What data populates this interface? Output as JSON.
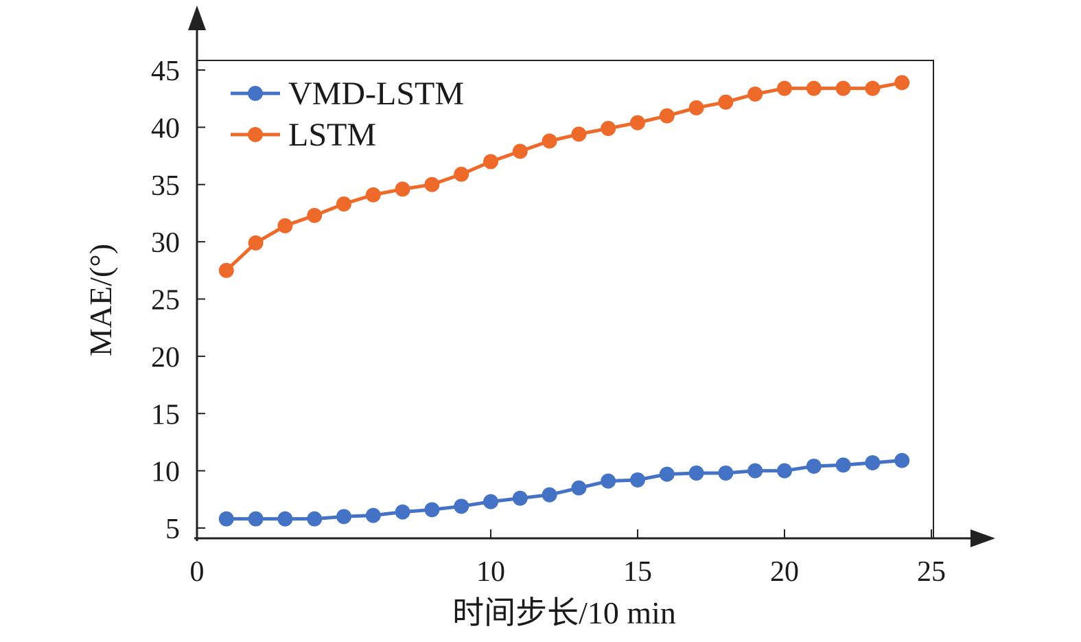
{
  "chart_data": {
    "type": "line",
    "xlabel": "时间步长/10 min",
    "ylabel": "MAE/(°)",
    "xlim": [
      0,
      25
    ],
    "ylim": [
      5,
      45
    ],
    "xticks": [
      0,
      10,
      15,
      20,
      25
    ],
    "yticks": [
      5,
      10,
      15,
      20,
      25,
      30,
      35,
      40,
      45
    ],
    "grid": false,
    "legend_position": "top-left",
    "x": [
      1,
      2,
      3,
      4,
      5,
      6,
      7,
      8,
      9,
      10,
      11,
      12,
      13,
      14,
      15,
      16,
      17,
      18,
      19,
      20,
      21,
      22,
      23,
      24
    ],
    "series": [
      {
        "name": "VMD-LSTM",
        "color": "#4472c4",
        "values": [
          5.8,
          5.8,
          5.8,
          5.8,
          6.0,
          6.1,
          6.4,
          6.6,
          6.9,
          7.3,
          7.6,
          7.9,
          8.5,
          9.1,
          9.2,
          9.7,
          9.8,
          9.8,
          10.0,
          10.0,
          10.4,
          10.5,
          10.7,
          10.9
        ]
      },
      {
        "name": "LSTM",
        "color": "#ed6a2a",
        "values": [
          27.5,
          29.9,
          31.4,
          32.3,
          33.3,
          34.1,
          34.6,
          35.0,
          35.9,
          37.0,
          37.9,
          38.8,
          39.4,
          39.9,
          40.4,
          41.0,
          41.7,
          42.2,
          42.9,
          43.4,
          43.4,
          43.4,
          43.4,
          43.9
        ]
      }
    ]
  },
  "icons": {
    "x_axis_arrow": "arrow-right-icon",
    "y_axis_arrow": "arrow-up-icon"
  }
}
